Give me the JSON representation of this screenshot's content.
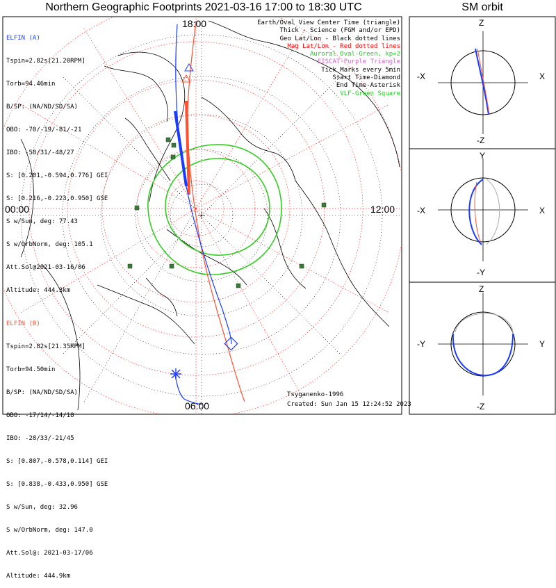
{
  "title": "Northern Geographic Footprints 2021-03-16 17:00 to 18:30 UTC",
  "sm_title": "SM orbit",
  "hour_labels": {
    "top": "18:00",
    "left": "00:00",
    "right": "12:00",
    "bottom": "06:00"
  },
  "elfin_a": {
    "name": "ELFIN (A)",
    "color": "#1a3cff",
    "lines": [
      "Tspin=2.82s[21.20RPM]",
      "Torb=94.46min",
      "B/SP: (NA/ND/SD/SA)",
      "OBO: -70/-19/-81/-21",
      "IBO: -58/31/-48/27",
      "S: [0.201,-0.594,0.776] GEI",
      "S: [0.216,-0.223,0.950] GSE",
      "S w/Sun, deg: 77.43",
      "S w/OrbNorm, deg: 105.1",
      "Att.Sol@2021-03-16/06",
      "Altitude: 444.3km"
    ]
  },
  "elfin_b": {
    "name": "ELFIN (B)",
    "color": "#ff5030",
    "lines": [
      "Tspin=2.82s[21.35RPM]",
      "Torb=94.50min",
      "B/SP: (NA/ND/SD/SA)",
      "OBO: -17/14/-14/18",
      "IBO: -28/33/-21/45",
      "S: [0.807,-0.578,0.114] GEI",
      "S: [0.838,-0.433,0.950] GSE",
      "S w/Sun, deg: 32.96",
      "S w/OrbNorm, deg: 147.0",
      "Att.Sol@: 2021-03-17/06",
      "Altitude: 444.9km"
    ]
  },
  "legend": [
    {
      "text": "Earth/Oval View Center Time (triangle)",
      "color": "#000000"
    },
    {
      "text": "Thick - Science (FGM and/or EPD)",
      "color": "#000000"
    },
    {
      "text": "Geo Lat/Lon - Black dotted lines",
      "color": "#000000"
    },
    {
      "text": "Mag Lat/Lon - Red dotted lines",
      "color": "#ff0000"
    },
    {
      "text": "Auroral Oval-Green, kp=2",
      "color": "#22cc22"
    },
    {
      "text": "EISCAT-Purple Triangle",
      "color": "#cc66cc"
    },
    {
      "text": "Tick Marks every 5min",
      "color": "#000000"
    },
    {
      "text": "Start Time-Diamond",
      "color": "#000000"
    },
    {
      "text": "End Time-Asterisk",
      "color": "#000000"
    },
    {
      "text": "VLF-Green Square",
      "color": "#22cc22"
    }
  ],
  "credits": {
    "author": "Tsyganenko-1996",
    "created": "Created: Sun Jan 15 12:24:52 2023"
  },
  "sm_panels": [
    {
      "top": "Z",
      "bottom": "-Z",
      "left": "-X",
      "right": "X"
    },
    {
      "top": "Y",
      "bottom": "-Y",
      "left": "-X",
      "right": "X"
    },
    {
      "top": "Z",
      "bottom": "-Z",
      "left": "-Y",
      "right": "Y"
    }
  ],
  "colors": {
    "elfin_a": "#1a3cff",
    "elfin_b": "#ff5030",
    "oval": "#33cc22",
    "vlf": "#3a7a3a",
    "mag_grid": "#ff3030",
    "geo_grid": "#000000"
  }
}
